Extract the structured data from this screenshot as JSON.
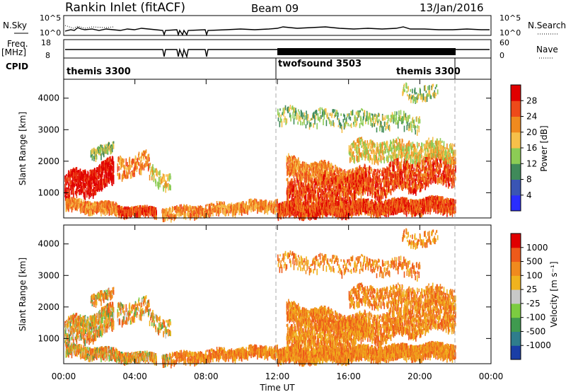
{
  "header": {
    "title": "Rankin Inlet (fitACF)",
    "beam": "Beam 09",
    "date": "13/Jan/2016"
  },
  "strip": {
    "nsky_label": "N.Sky",
    "freq_label": "Freq.",
    "freq_unit": "[MHz]",
    "cpid_label": "CPID",
    "nsearch_label": "N.Search",
    "nave_label": "Nave",
    "noise_ticks": [
      "10^5",
      "10^0"
    ],
    "freq_ticks": [
      "18",
      "8"
    ],
    "nave_ticks": [
      "60",
      "0"
    ],
    "cpid_segments": [
      {
        "label": "themis 3300",
        "start_h": 0,
        "end_h": 12
      },
      {
        "label": "twofsound 3503",
        "start_h": 12,
        "end_h": 22
      },
      {
        "label": "themis 3300",
        "start_h": 19.5,
        "end_h": 22
      }
    ]
  },
  "chart_data": [
    {
      "type": "heatmap",
      "name": "Power",
      "xlabel": "",
      "ylabel": "Slant Range [km]",
      "xlim": [
        0,
        24
      ],
      "ylim": [
        200,
        4600
      ],
      "yticks": [
        "1000",
        "2000",
        "3000",
        "4000"
      ],
      "colorbar": {
        "label": "Power [dB]",
        "ticks": [
          "28",
          "24",
          "20",
          "16",
          "12",
          "8",
          "4"
        ],
        "colors": [
          "#2a2dff",
          "#3a55b4",
          "#3f8a5a",
          "#8ccc55",
          "#f6c04a",
          "#f08a1e",
          "#ee4a1a",
          "#e00000"
        ]
      }
    },
    {
      "type": "heatmap",
      "name": "Velocity",
      "xlabel": "Time UT",
      "ylabel": "Slant Range [km]",
      "xlim": [
        0,
        24
      ],
      "ylim": [
        200,
        4600
      ],
      "xticks": [
        "00:00",
        "04:00",
        "08:00",
        "12:00",
        "16:00",
        "20:00",
        "00:00"
      ],
      "yticks": [
        "1000",
        "2000",
        "3000",
        "4000"
      ],
      "colorbar": {
        "label": "Velocity [m s⁻¹]",
        "ticks": [
          "1000",
          "500",
          "100",
          "25",
          "-25",
          "-100",
          "-500",
          "-1000"
        ],
        "colors": [
          "#1a3ea6",
          "#2f7d8c",
          "#3f9a4f",
          "#7ccc40",
          "#c8c8c8",
          "#f0b31e",
          "#f08a1e",
          "#ee5a1a",
          "#e00000"
        ]
      }
    }
  ]
}
